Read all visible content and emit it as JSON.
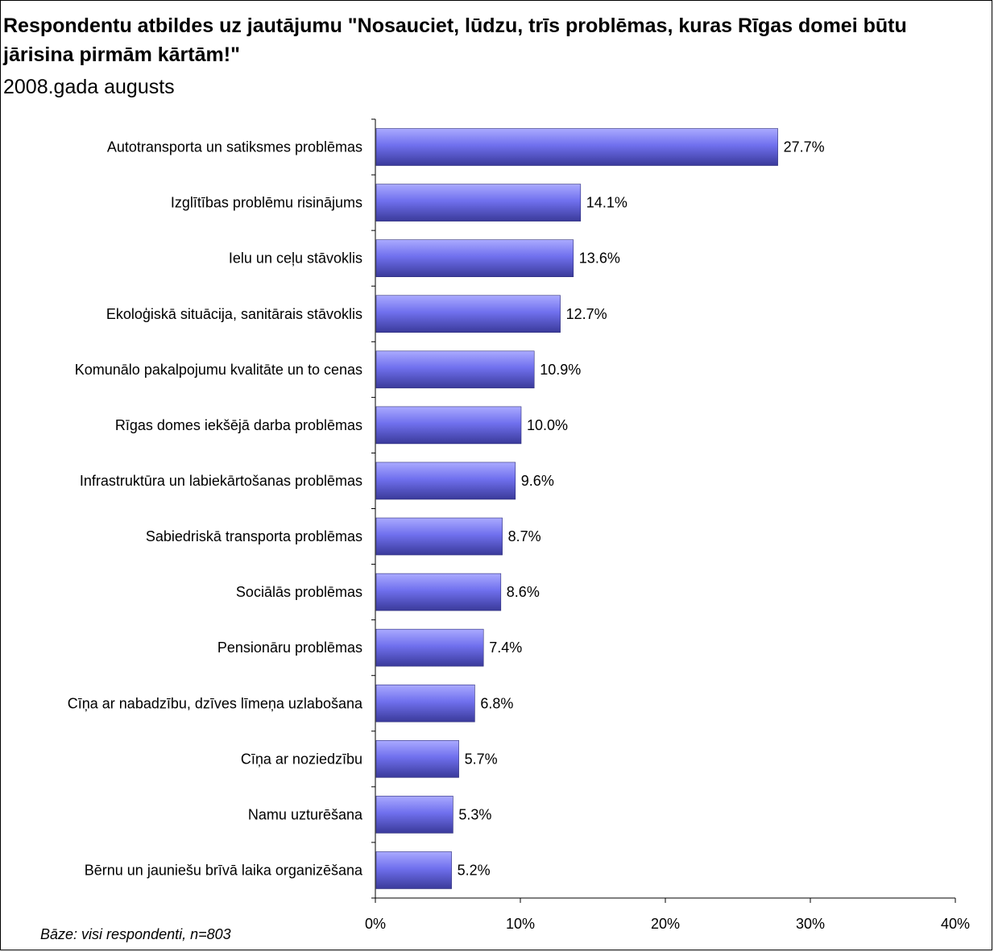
{
  "header": {
    "title": "Respondentu atbildes uz jautājumu \"Nosauciet, lūdzu, trīs problēmas, kuras Rīgas domei būtu jārisina pirmām kārtām!\"",
    "subtitle": "2008.gada augusts"
  },
  "footnote": "Bāze: visi respondenti, n=803",
  "colors": {
    "bar": "#7070ee",
    "bar_light": "#aaaaff",
    "bar_dark": "#3a3a9a"
  },
  "chart_data": {
    "type": "bar",
    "orientation": "horizontal",
    "categories": [
      "Autotransporta un satiksmes problēmas",
      "Izglītības problēmu risinājums",
      "Ielu un ceļu stāvoklis",
      "Ekoloģiskā situācija, sanitārais stāvoklis",
      "Komunālo pakalpojumu kvalitāte un to cenas",
      "Rīgas domes iekšējā darba problēmas",
      "Infrastruktūra un labiekārtošanas problēmas",
      "Sabiedriskā transporta problēmas",
      "Sociālās problēmas",
      "Pensionāru problēmas",
      "Cīņa ar nabadzību, dzīves līmeņa uzlabošana",
      "Cīņa ar noziedzību",
      "Namu uzturēšana",
      "Bērnu un jauniešu brīvā laika organizēšana"
    ],
    "values": [
      27.7,
      14.1,
      13.6,
      12.7,
      10.9,
      10.0,
      9.6,
      8.7,
      8.6,
      7.4,
      6.8,
      5.7,
      5.3,
      5.2
    ],
    "value_labels": [
      "27.7%",
      "14.1%",
      "13.6%",
      "12.7%",
      "10.9%",
      "10.0%",
      "9.6%",
      "8.7%",
      "8.6%",
      "7.4%",
      "6.8%",
      "5.7%",
      "5.3%",
      "5.2%"
    ],
    "x_ticks": [
      0,
      10,
      20,
      30,
      40
    ],
    "x_tick_labels": [
      "0%",
      "10%",
      "20%",
      "30%",
      "40%"
    ],
    "xlim": [
      0,
      40
    ],
    "grid": false,
    "legend": false
  }
}
